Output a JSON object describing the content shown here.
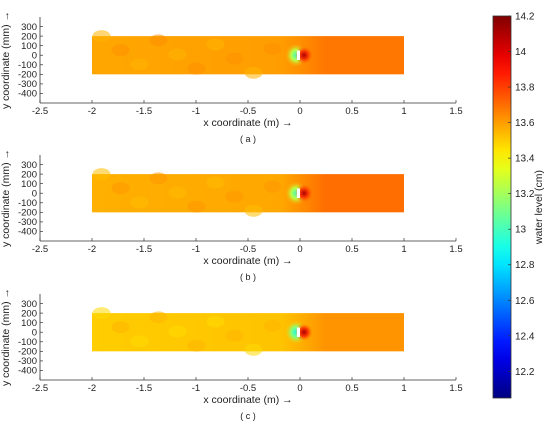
{
  "chart_data": {
    "type": "heatmap",
    "panels": [
      {
        "caption": "( a )",
        "xlabel": "x coordinate (m) →",
        "ylabel": "y coordinate (mm) →",
        "xlim": [
          -2.5,
          1.5
        ],
        "ylim": [
          -500,
          400
        ],
        "xticks": [
          -2.5,
          -2,
          -1.5,
          -1,
          -0.5,
          0,
          0.5,
          1,
          1.5
        ],
        "yticks": [
          300,
          200,
          100,
          0,
          -100,
          -200,
          -300,
          -400
        ],
        "domain": {
          "x": [
            -2.0,
            1.0
          ],
          "y": [
            -200,
            200
          ]
        },
        "upstream_level_cm": 13.58,
        "downstream_level_cm": 13.68,
        "obstacle": {
          "x": [
            -0.03,
            0.0
          ],
          "y": [
            -50,
            50
          ]
        },
        "max_level_cm": 14.1,
        "min_level_cm": 13.0
      },
      {
        "caption": "( b )",
        "xlabel": "x coordinate (m) →",
        "ylabel": "y coordinate (mm) →",
        "xlim": [
          -2.5,
          1.5
        ],
        "ylim": [
          -500,
          400
        ],
        "xticks": [
          -2.5,
          -2,
          -1.5,
          -1,
          -0.5,
          0,
          0.5,
          1,
          1.5
        ],
        "yticks": [
          300,
          200,
          100,
          0,
          -100,
          -200,
          -300,
          -400
        ],
        "domain": {
          "x": [
            -2.0,
            1.0
          ],
          "y": [
            -200,
            200
          ]
        },
        "upstream_level_cm": 13.56,
        "downstream_level_cm": 13.7,
        "obstacle": {
          "x": [
            -0.03,
            0.0
          ],
          "y": [
            -50,
            50
          ]
        },
        "max_level_cm": 14.1,
        "min_level_cm": 13.0
      },
      {
        "caption": "( c )",
        "xlabel": "x coordinate (m) →",
        "ylabel": "y coordinate (mm) →",
        "xlim": [
          -2.5,
          1.5
        ],
        "ylim": [
          -500,
          400
        ],
        "xticks": [
          -2.5,
          -2,
          -1.5,
          -1,
          -0.5,
          0,
          0.5,
          1,
          1.5
        ],
        "yticks": [
          300,
          200,
          100,
          0,
          -100,
          -200,
          -300,
          -400
        ],
        "domain": {
          "x": [
            -2.0,
            1.0
          ],
          "y": [
            -200,
            200
          ]
        },
        "upstream_level_cm": 13.5,
        "downstream_level_cm": 13.62,
        "obstacle": {
          "x": [
            -0.03,
            0.0
          ],
          "y": [
            -50,
            50
          ]
        },
        "max_level_cm": 14.1,
        "min_level_cm": 12.9
      }
    ],
    "colorbar": {
      "label": "water level (cm)",
      "range": [
        12.05,
        14.2
      ],
      "ticks": [
        14.2,
        14,
        13.8,
        13.6,
        13.4,
        13.2,
        13,
        12.8,
        12.6,
        12.4,
        12.2
      ],
      "tick_labels": [
        "14.2",
        "14",
        "13.8",
        "13.6",
        "13.4",
        "13.2",
        "13",
        "12.8",
        "12.6",
        "12.4",
        "12.2"
      ],
      "colormap": "jet"
    }
  }
}
